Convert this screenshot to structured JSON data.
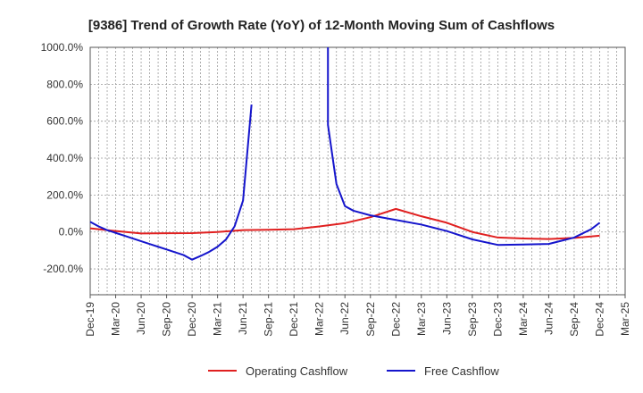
{
  "chart_data": {
    "type": "line",
    "title": "[9386]  Trend of Growth Rate (YoY) of 12-Month Moving Sum of Cashflows",
    "xlabel": "",
    "ylabel": "",
    "ylim": [
      -340,
      1000
    ],
    "y_ticks": [
      1000,
      800,
      600,
      400,
      200,
      0,
      -200
    ],
    "y_tick_labels": [
      "1000.0%",
      "800.0%",
      "600.0%",
      "400.0%",
      "200.0%",
      "0.0%",
      "-200.0%"
    ],
    "x_ticks": [
      "2019-12",
      "2020-03",
      "2020-06",
      "2020-09",
      "2020-12",
      "2021-03",
      "2021-06",
      "2021-09",
      "2021-12",
      "2022-03",
      "2022-06",
      "2022-09",
      "2022-12",
      "2023-03",
      "2023-06",
      "2023-09",
      "2023-12",
      "2024-03",
      "2024-06",
      "2024-09",
      "2024-12",
      "2025-03"
    ],
    "x_tick_labels": [
      "Dec-19",
      "Mar-20",
      "Jun-20",
      "Sep-20",
      "Dec-20",
      "Mar-21",
      "Jun-21",
      "Sep-21",
      "Dec-21",
      "Mar-22",
      "Jun-22",
      "Sep-22",
      "Dec-22",
      "Mar-23",
      "Jun-23",
      "Sep-23",
      "Dec-23",
      "Mar-24",
      "Jun-24",
      "Sep-24",
      "Dec-24",
      "Mar-25"
    ],
    "grid": true,
    "legend_position": "bottom",
    "series": [
      {
        "name": "Operating Cashflow",
        "color": "#e02020",
        "points": [
          [
            "2019-12",
            20
          ],
          [
            "2020-03",
            5
          ],
          [
            "2020-06",
            -8
          ],
          [
            "2020-09",
            -7
          ],
          [
            "2020-12",
            -6
          ],
          [
            "2021-03",
            0
          ],
          [
            "2021-06",
            10
          ],
          [
            "2021-09",
            12
          ],
          [
            "2021-12",
            15
          ],
          [
            "2022-03",
            30
          ],
          [
            "2022-06",
            48
          ],
          [
            "2022-09",
            80
          ],
          [
            "2022-12",
            125
          ],
          [
            "2023-03",
            85
          ],
          [
            "2023-06",
            50
          ],
          [
            "2023-09",
            0
          ],
          [
            "2023-12",
            -30
          ],
          [
            "2024-03",
            -35
          ],
          [
            "2024-06",
            -38
          ],
          [
            "2024-09",
            -32
          ],
          [
            "2024-12",
            -20
          ]
        ]
      },
      {
        "name": "Free Cashflow",
        "color": "#1515cc",
        "segments": [
          [
            [
              "2019-12",
              55
            ],
            [
              "2020-01",
              30
            ],
            [
              "2020-02",
              10
            ],
            [
              "2020-03",
              -5
            ],
            [
              "2020-04",
              -20
            ],
            [
              "2020-05",
              -35
            ],
            [
              "2020-06",
              -50
            ],
            [
              "2020-07",
              -65
            ],
            [
              "2020-08",
              -80
            ],
            [
              "2020-09",
              -95
            ],
            [
              "2020-10",
              -110
            ],
            [
              "2020-11",
              -125
            ],
            [
              "2020-12",
              -150
            ],
            [
              "2021-01",
              -130
            ],
            [
              "2021-02",
              -108
            ],
            [
              "2021-03",
              -80
            ],
            [
              "2021-04",
              -40
            ],
            [
              "2021-05",
              30
            ],
            [
              "2021-06",
              170
            ],
            [
              "2021-07",
              690
            ]
          ],
          [
            [
              "2022-04",
              1000
            ],
            [
              "2022-04",
              580
            ],
            [
              "2022-05",
              260
            ],
            [
              "2022-06",
              140
            ],
            [
              "2022-07",
              115
            ],
            [
              "2022-09",
              90
            ],
            [
              "2022-12",
              65
            ],
            [
              "2023-03",
              40
            ],
            [
              "2023-06",
              5
            ],
            [
              "2023-09",
              -40
            ],
            [
              "2023-12",
              -70
            ],
            [
              "2024-03",
              -68
            ],
            [
              "2024-06",
              -65
            ],
            [
              "2024-09",
              -30
            ],
            [
              "2024-11",
              15
            ],
            [
              "2024-12",
              50
            ]
          ]
        ]
      }
    ]
  }
}
